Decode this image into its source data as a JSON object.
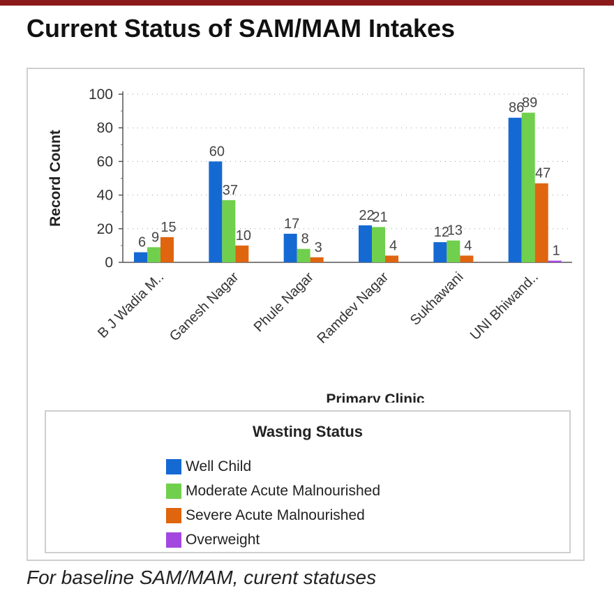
{
  "header": {
    "title": "Current Status of SAM/MAM Intakes",
    "caption": "For baseline SAM/MAM, curent statuses"
  },
  "colors": {
    "top_bar": "#8b1a1a",
    "well_child": "#1569d3",
    "moderate": "#71cf4e",
    "severe": "#e0650f",
    "overweight": "#a447e0"
  },
  "chart_data": {
    "type": "bar",
    "title": "",
    "xlabel": "Primary Clinic",
    "ylabel": "Record Count",
    "ylim": [
      0,
      100
    ],
    "yticks": [
      0,
      20,
      40,
      60,
      80,
      100
    ],
    "grid": true,
    "categories": [
      "B J Wadia M..",
      "Ganesh Nagar",
      "Phule Nagar",
      "Ramdev Nagar",
      "Sukhawani",
      "UNI Bhiwand.."
    ],
    "series": [
      {
        "name": "Well Child",
        "color": "#1569d3",
        "values": [
          6,
          60,
          17,
          22,
          12,
          86
        ]
      },
      {
        "name": "Moderate Acute Malnourished",
        "color": "#71cf4e",
        "values": [
          9,
          37,
          8,
          21,
          13,
          89
        ]
      },
      {
        "name": "Severe Acute Malnourished",
        "color": "#e0650f",
        "values": [
          15,
          10,
          3,
          4,
          4,
          47
        ]
      },
      {
        "name": "Overweight",
        "color": "#a447e0",
        "values": [
          null,
          null,
          null,
          null,
          null,
          1
        ]
      }
    ],
    "legend": {
      "title": "Wasting Status",
      "position": "bottom"
    }
  }
}
